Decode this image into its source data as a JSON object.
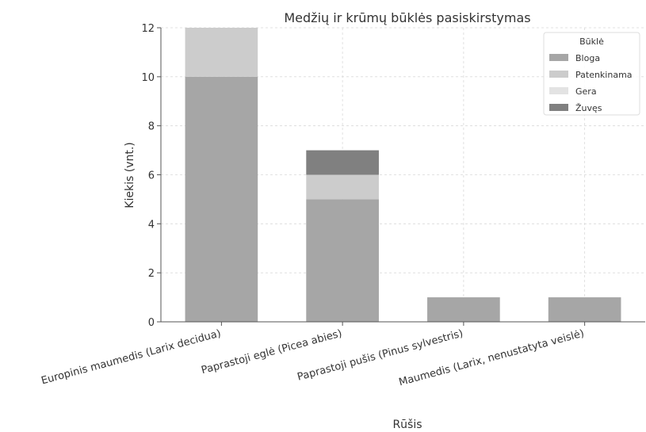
{
  "chart_data": {
    "type": "bar",
    "stacked": true,
    "title": "Medžių ir krūmų būklės pasiskirstymas",
    "xlabel": "Rūšis",
    "ylabel": "Kiekis (vnt.)",
    "ylim": [
      0,
      12
    ],
    "yticks": [
      0,
      2,
      4,
      6,
      8,
      10,
      12
    ],
    "grid": true,
    "legend": {
      "title": "Būklė",
      "position": "top-right"
    },
    "categories": [
      "Europinis maumedis (Larix decidua)",
      "Paprastoji eglė (Picea abies)",
      "Paprastoji pušis (Pinus sylvestris)",
      "Maumedis (Larix, nenustatyta veislė)"
    ],
    "series": [
      {
        "name": "Bloga",
        "color": "#a6a6a6",
        "values": [
          10,
          5,
          1,
          1
        ]
      },
      {
        "name": "Patenkinama",
        "color": "#cccccc",
        "values": [
          2,
          1,
          0,
          0
        ]
      },
      {
        "name": "Gera",
        "color": "#e3e3e3",
        "values": [
          0,
          0,
          0,
          0
        ]
      },
      {
        "name": "Žuvęs",
        "color": "#808080",
        "values": [
          0,
          1,
          0,
          0
        ]
      }
    ]
  }
}
